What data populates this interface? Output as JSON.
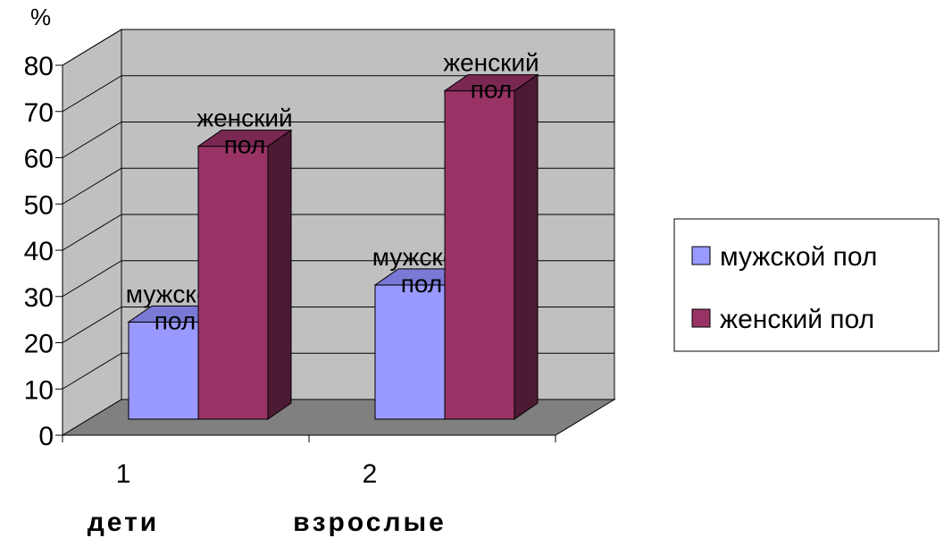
{
  "chart_data": {
    "type": "bar",
    "style": "3d-clustered-column",
    "ylabel": "%",
    "ylim": [
      0,
      80
    ],
    "yticks": [
      "0",
      "10",
      "20",
      "30",
      "40",
      "50",
      "60",
      "70",
      "80"
    ],
    "categories": [
      "1",
      "2"
    ],
    "group_labels": [
      "дети",
      "взрослые"
    ],
    "gridlines": true,
    "legend_position": "right",
    "series": [
      {
        "name": "мужской пол",
        "values": [
          21,
          29
        ],
        "data_label_line1": "мужской",
        "data_label_line2": "пол"
      },
      {
        "name": "женский пол",
        "values": [
          59,
          71
        ],
        "data_label_line1": "женский",
        "data_label_line2": "пол"
      }
    ]
  },
  "colors": {
    "series_front": [
      "#9999ff",
      "#993366"
    ],
    "series_top": [
      "#7a7ad6",
      "#7a2852"
    ],
    "series_side": [
      "#5c5cbf",
      "#4d1a33"
    ],
    "wall": "#c0c0c0",
    "floor": "#808080",
    "grid": "#000000"
  }
}
